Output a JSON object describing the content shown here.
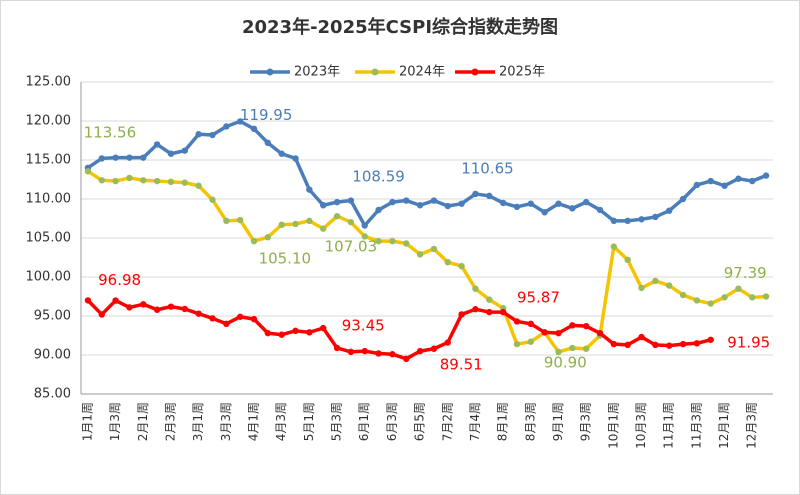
{
  "chart_data": {
    "type": "line",
    "title": "2023年-2025年CSPI综合指数走势图",
    "categories": [
      "1月1周",
      null,
      "1月3周",
      null,
      "2月1周",
      null,
      "2月3周",
      null,
      "3月1周",
      null,
      "3月3周",
      null,
      "4月1周",
      null,
      "4月3周",
      null,
      "5月1周",
      null,
      "5月3周",
      null,
      "6月1周",
      null,
      "6月3周",
      null,
      "6月5周",
      null,
      "7月2周",
      null,
      "7月4周",
      null,
      "8月1周",
      null,
      "8月3周",
      null,
      "9月1周",
      null,
      "9月3周",
      null,
      "10月1周",
      null,
      "10月3周",
      null,
      "11月1周",
      null,
      "11月3周",
      null,
      "12月1周",
      null,
      "12月3周",
      null
    ],
    "series": [
      {
        "name": "2023年",
        "color": "#4a7ebb",
        "marker_color": "#4a7ebb",
        "values": [
          114.0,
          115.2,
          115.3,
          115.3,
          115.3,
          117.0,
          115.8,
          116.2,
          118.3,
          118.2,
          119.3,
          119.95,
          119.0,
          117.2,
          115.8,
          115.2,
          111.2,
          109.2,
          109.6,
          109.8,
          106.6,
          108.59,
          109.6,
          109.8,
          109.2,
          109.8,
          109.1,
          109.4,
          110.65,
          110.4,
          109.5,
          109.0,
          109.4,
          108.3,
          109.4,
          108.8,
          109.6,
          108.6,
          107.2,
          107.2,
          107.4,
          107.7,
          108.5,
          110.0,
          111.8,
          112.3,
          111.7,
          112.6,
          112.3,
          113.0
        ],
        "value_labels": [
          null,
          null,
          null,
          null,
          null,
          null,
          null,
          null,
          null,
          null,
          null,
          "119.95",
          null,
          null,
          null,
          null,
          null,
          null,
          null,
          null,
          null,
          "108.59",
          null,
          null,
          null,
          null,
          null,
          null,
          "110.65",
          null,
          null,
          null,
          null,
          null,
          null,
          null,
          null,
          null,
          null,
          null,
          null,
          null,
          null,
          null,
          null,
          null,
          null,
          null,
          null,
          null
        ]
      },
      {
        "name": "2024年",
        "color": "#f5c400",
        "marker_color": "#9bbb59",
        "values": [
          113.56,
          112.4,
          112.3,
          112.7,
          112.4,
          112.3,
          112.2,
          112.1,
          111.7,
          109.9,
          107.2,
          107.3,
          104.6,
          105.1,
          106.7,
          106.8,
          107.2,
          106.2,
          107.8,
          107.03,
          105.2,
          104.6,
          104.6,
          104.3,
          102.9,
          103.6,
          101.9,
          101.4,
          98.5,
          97.1,
          96.0,
          91.4,
          91.7,
          92.9,
          90.4,
          90.9,
          90.8,
          92.5,
          103.9,
          102.2,
          98.6,
          99.5,
          98.9,
          97.7,
          97.0,
          96.6,
          97.4,
          98.5,
          97.39,
          97.5
        ],
        "value_labels": [
          "113.56",
          null,
          null,
          null,
          null,
          null,
          null,
          null,
          null,
          null,
          null,
          null,
          null,
          "105.10",
          null,
          null,
          null,
          null,
          null,
          "107.03",
          null,
          null,
          null,
          null,
          null,
          null,
          null,
          null,
          null,
          null,
          null,
          null,
          null,
          null,
          null,
          "90.90",
          null,
          null,
          null,
          null,
          null,
          null,
          null,
          null,
          null,
          null,
          null,
          null,
          "97.39",
          null
        ]
      },
      {
        "name": "2025年",
        "color": "#ff0000",
        "marker_color": "#ff0000",
        "values": [
          97.0,
          95.2,
          96.98,
          96.1,
          96.5,
          95.8,
          96.2,
          95.9,
          95.3,
          94.7,
          94.0,
          94.9,
          94.6,
          92.8,
          92.6,
          93.1,
          92.9,
          93.45,
          90.9,
          90.4,
          90.5,
          90.2,
          90.1,
          89.51,
          90.5,
          90.8,
          91.6,
          95.2,
          95.87,
          95.5,
          95.5,
          94.3,
          94.0,
          92.9,
          92.8,
          93.8,
          93.7,
          92.8,
          91.4,
          91.3,
          92.3,
          91.3,
          91.2,
          91.4,
          91.5,
          91.95,
          null,
          null,
          null,
          null
        ],
        "value_labels": [
          null,
          null,
          "96.98",
          null,
          null,
          null,
          null,
          null,
          null,
          null,
          null,
          null,
          null,
          null,
          null,
          null,
          null,
          "93.45",
          null,
          null,
          null,
          null,
          null,
          "89.51",
          null,
          null,
          null,
          null,
          "95.87",
          null,
          null,
          null,
          null,
          null,
          null,
          null,
          null,
          null,
          null,
          null,
          null,
          null,
          null,
          null,
          null,
          "91.95",
          null,
          null,
          null,
          null
        ]
      }
    ],
    "ylim": [
      85,
      125
    ],
    "yticks": [
      {
        "value": 85,
        "label": "85.00"
      },
      {
        "value": 90,
        "label": "90.00"
      },
      {
        "value": 95,
        "label": "95.00"
      },
      {
        "value": 100,
        "label": "100.00"
      },
      {
        "value": 105,
        "label": "105.00"
      },
      {
        "value": 110,
        "label": "110.00"
      },
      {
        "value": 115,
        "label": "115.00"
      },
      {
        "value": 120,
        "label": "120.00"
      },
      {
        "value": 125,
        "label": "125.00"
      }
    ],
    "grid": true
  }
}
